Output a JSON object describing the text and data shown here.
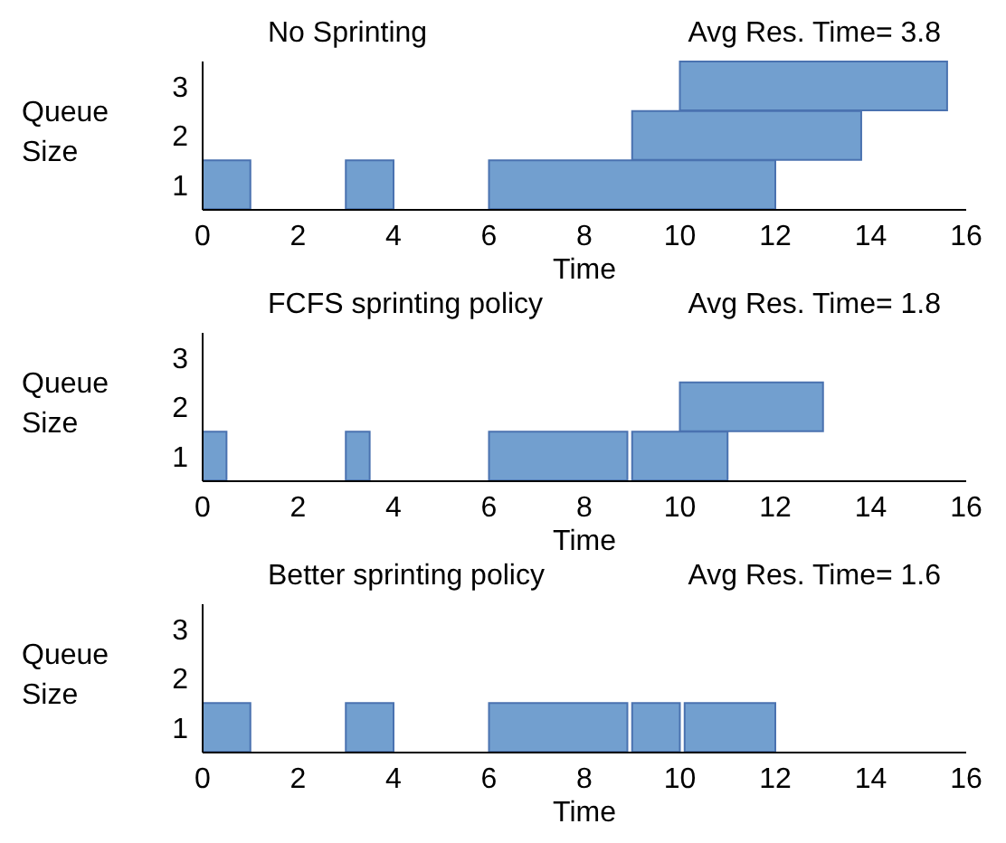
{
  "chart_data": [
    {
      "type": "bar",
      "orientation": "horizontal",
      "title": "No Sprinting",
      "annotations": [
        "Avg Res. Time= 3.8"
      ],
      "xlabel": "Time",
      "ylabel": "Queue Size",
      "categories": [
        "3",
        "2",
        "1"
      ],
      "xlim": [
        0,
        16
      ],
      "xticks": [
        0,
        2,
        4,
        6,
        8,
        10,
        12,
        14,
        16
      ],
      "series": [
        {
          "color": "#729fcf",
          "base": [
            10,
            9,
            0
          ],
          "values": [
            5.6,
            4.8,
            1
          ]
        },
        {
          "color": "#729fcf",
          "base": [
            null,
            null,
            3
          ],
          "values": [
            null,
            null,
            1
          ]
        },
        {
          "color": "#729fcf",
          "base": [
            null,
            null,
            6
          ],
          "values": [
            null,
            null,
            6
          ]
        }
      ]
    },
    {
      "type": "bar",
      "orientation": "horizontal",
      "title": "FCFS sprinting policy",
      "annotations": [
        "Avg Res. Time= 1.8"
      ],
      "xlabel": "Time",
      "ylabel": "Queue Size",
      "categories": [
        "3",
        "2",
        "1"
      ],
      "xlim": [
        0,
        16
      ],
      "xticks": [
        0,
        2,
        4,
        6,
        8,
        10,
        12,
        14,
        16
      ],
      "series": [
        {
          "color": "#729fcf",
          "base": [
            null,
            10,
            0
          ],
          "values": [
            null,
            3,
            0.5
          ]
        },
        {
          "color": "#729fcf",
          "base": [
            null,
            null,
            3
          ],
          "values": [
            null,
            null,
            0.5
          ]
        },
        {
          "color": "#729fcf",
          "base": [
            null,
            null,
            6
          ],
          "values": [
            null,
            null,
            2.9
          ]
        },
        {
          "color": "#729fcf",
          "base": [
            null,
            null,
            9
          ],
          "values": [
            null,
            null,
            2
          ]
        }
      ]
    },
    {
      "type": "bar",
      "orientation": "horizontal",
      "title": "Better sprinting policy",
      "annotations": [
        "Avg Res. Time= 1.6"
      ],
      "xlabel": "Time",
      "ylabel": "Queue Size",
      "categories": [
        "3",
        "2",
        "1"
      ],
      "xlim": [
        0,
        16
      ],
      "xticks": [
        0,
        2,
        4,
        6,
        8,
        10,
        12,
        14,
        16
      ],
      "series": [
        {
          "color": "#729fcf",
          "base": [
            null,
            null,
            0
          ],
          "values": [
            null,
            null,
            1
          ]
        },
        {
          "color": "#729fcf",
          "base": [
            null,
            null,
            3
          ],
          "values": [
            null,
            null,
            1
          ]
        },
        {
          "color": "#729fcf",
          "base": [
            null,
            null,
            6
          ],
          "values": [
            null,
            null,
            2.9
          ]
        },
        {
          "color": "#729fcf",
          "base": [
            null,
            null,
            9
          ],
          "values": [
            null,
            null,
            1
          ]
        },
        {
          "color": "#729fcf",
          "base": [
            null,
            null,
            10.1
          ],
          "values": [
            null,
            null,
            1.9
          ]
        }
      ]
    }
  ]
}
